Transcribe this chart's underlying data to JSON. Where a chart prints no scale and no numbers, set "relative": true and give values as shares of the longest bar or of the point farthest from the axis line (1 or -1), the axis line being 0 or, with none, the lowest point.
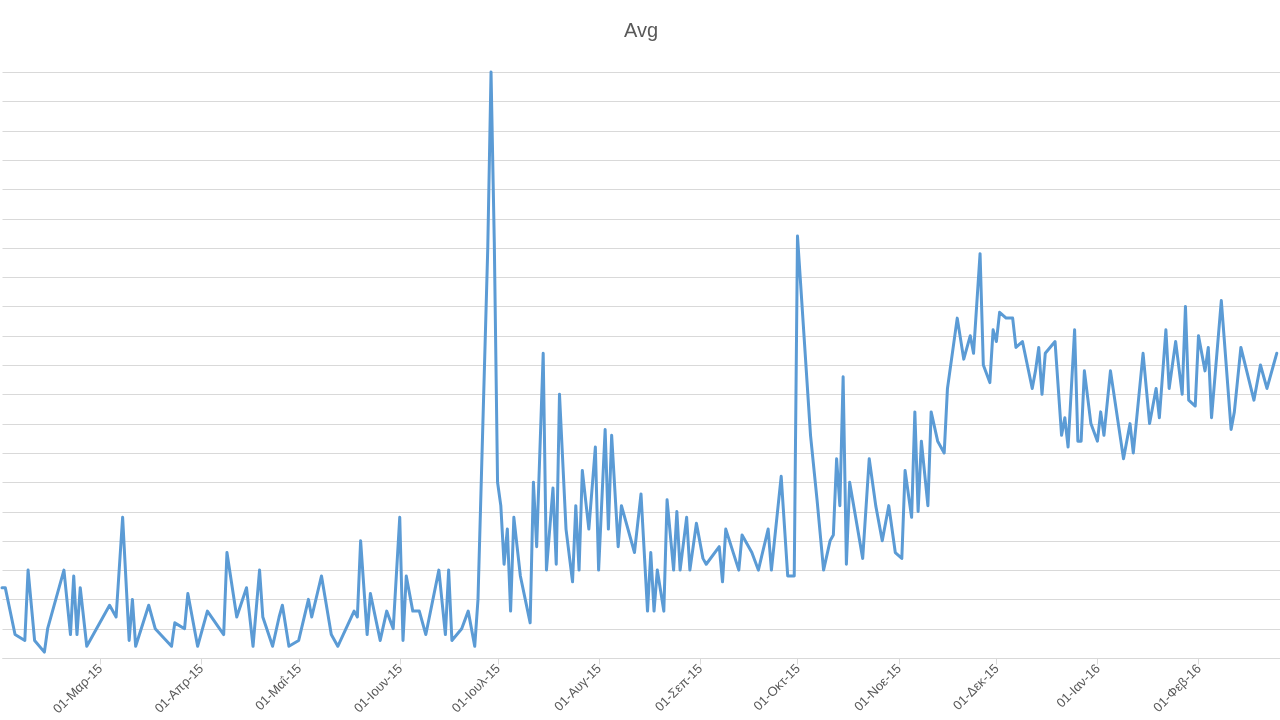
{
  "chart_data": {
    "type": "line",
    "title": "Avg",
    "relative": true,
    "grid": "y",
    "xlim": [
      "2015-01-30",
      "2016-02-26"
    ],
    "xticks": [
      {
        "value": "2015-03-01",
        "label": "01-Μαρ-15"
      },
      {
        "value": "2015-04-01",
        "label": "01-Απρ-15"
      },
      {
        "value": "2015-05-01",
        "label": "01-Μαΐ-15"
      },
      {
        "value": "2015-06-01",
        "label": "01-Ιουν-15"
      },
      {
        "value": "2015-07-01",
        "label": "01-Ιουλ-15"
      },
      {
        "value": "2015-08-01",
        "label": "01-Αυγ-15"
      },
      {
        "value": "2015-09-01",
        "label": "01-Σεπ-15"
      },
      {
        "value": "2015-10-01",
        "label": "01-Οκτ-15"
      },
      {
        "value": "2015-11-01",
        "label": "01-Νοε-15"
      },
      {
        "value": "2015-12-01",
        "label": "01-Δεκ-15"
      },
      {
        "value": "2016-01-01",
        "label": "01-Ιαν-16"
      },
      {
        "value": "2016-02-01",
        "label": "01-Φεβ-16"
      }
    ],
    "series": [
      {
        "color": "#5b9bd5",
        "x": [
          "2015-01-30",
          "2015-01-31",
          "2015-02-03",
          "2015-02-06",
          "2015-02-07",
          "2015-02-09",
          "2015-02-12",
          "2015-02-13",
          "2015-02-18",
          "2015-02-20",
          "2015-02-21",
          "2015-02-22",
          "2015-02-23",
          "2015-02-25",
          "2015-03-04",
          "2015-03-06",
          "2015-03-08",
          "2015-03-10",
          "2015-03-11",
          "2015-03-12",
          "2015-03-16",
          "2015-03-18",
          "2015-03-23",
          "2015-03-24",
          "2015-03-27",
          "2015-03-28",
          "2015-03-31",
          "2015-04-03",
          "2015-04-08",
          "2015-04-09",
          "2015-04-12",
          "2015-04-15",
          "2015-04-17",
          "2015-04-19",
          "2015-04-20",
          "2015-04-23",
          "2015-04-25",
          "2015-04-26",
          "2015-04-28",
          "2015-05-01",
          "2015-05-04",
          "2015-05-05",
          "2015-05-08",
          "2015-05-11",
          "2015-05-13",
          "2015-05-18",
          "2015-05-19",
          "2015-05-20",
          "2015-05-22",
          "2015-05-23",
          "2015-05-26",
          "2015-05-28",
          "2015-05-30",
          "2015-06-01",
          "2015-06-02",
          "2015-06-03",
          "2015-06-05",
          "2015-06-07",
          "2015-06-09",
          "2015-06-13",
          "2015-06-15",
          "2015-06-16",
          "2015-06-17",
          "2015-06-20",
          "2015-06-22",
          "2015-06-24",
          "2015-06-25",
          "2015-06-28",
          "2015-06-29",
          "2015-06-30",
          "2015-07-01",
          "2015-07-02",
          "2015-07-03",
          "2015-07-04",
          "2015-07-05",
          "2015-07-06",
          "2015-07-08",
          "2015-07-11",
          "2015-07-12",
          "2015-07-13",
          "2015-07-15",
          "2015-07-16",
          "2015-07-18",
          "2015-07-19",
          "2015-07-20",
          "2015-07-22",
          "2015-07-24",
          "2015-07-25",
          "2015-07-26",
          "2015-07-27",
          "2015-07-29",
          "2015-07-31",
          "2015-08-01",
          "2015-08-03",
          "2015-08-04",
          "2015-08-05",
          "2015-08-07",
          "2015-08-08",
          "2015-08-12",
          "2015-08-14",
          "2015-08-16",
          "2015-08-17",
          "2015-08-18",
          "2015-08-19",
          "2015-08-21",
          "2015-08-22",
          "2015-08-24",
          "2015-08-25",
          "2015-08-26",
          "2015-08-28",
          "2015-08-29",
          "2015-08-31",
          "2015-09-02",
          "2015-09-03",
          "2015-09-07",
          "2015-09-08",
          "2015-09-09",
          "2015-09-13",
          "2015-09-14",
          "2015-09-17",
          "2015-09-19",
          "2015-09-22",
          "2015-09-23",
          "2015-09-26",
          "2015-09-28",
          "2015-09-30",
          "2015-10-01",
          "2015-10-05",
          "2015-10-07",
          "2015-10-09",
          "2015-10-11",
          "2015-10-12",
          "2015-10-13",
          "2015-10-14",
          "2015-10-15",
          "2015-10-16",
          "2015-10-17",
          "2015-10-21",
          "2015-10-23",
          "2015-10-25",
          "2015-10-27",
          "2015-10-29",
          "2015-10-31",
          "2015-11-02",
          "2015-11-03",
          "2015-11-05",
          "2015-11-06",
          "2015-11-07",
          "2015-11-08",
          "2015-11-10",
          "2015-11-11",
          "2015-11-13",
          "2015-11-15",
          "2015-11-16",
          "2015-11-19",
          "2015-11-21",
          "2015-11-23",
          "2015-11-24",
          "2015-11-26",
          "2015-11-27",
          "2015-11-29",
          "2015-11-30",
          "2015-12-01",
          "2015-12-02",
          "2015-12-04",
          "2015-12-06",
          "2015-12-07",
          "2015-12-09",
          "2015-12-12",
          "2015-12-13",
          "2015-12-14",
          "2015-12-15",
          "2015-12-16",
          "2015-12-19",
          "2015-12-21",
          "2015-12-22",
          "2015-12-23",
          "2015-12-25",
          "2015-12-26",
          "2015-12-27",
          "2015-12-28",
          "2015-12-30",
          "2016-01-01",
          "2016-01-02",
          "2016-01-03",
          "2016-01-05",
          "2016-01-09",
          "2016-01-11",
          "2016-01-12",
          "2016-01-15",
          "2016-01-17",
          "2016-01-19",
          "2016-01-20",
          "2016-01-22",
          "2016-01-23",
          "2016-01-25",
          "2016-01-27",
          "2016-01-28",
          "2016-01-29",
          "2016-01-31",
          "2016-02-01",
          "2016-02-03",
          "2016-02-04",
          "2016-02-05",
          "2016-02-08",
          "2016-02-11",
          "2016-02-12",
          "2016-02-14",
          "2016-02-18",
          "2016-02-20",
          "2016-02-22",
          "2016-02-24",
          "2016-02-25"
        ],
        "values": [
          0.12,
          0.12,
          0.04,
          0.03,
          0.15,
          0.03,
          0.01,
          0.05,
          0.15,
          0.04,
          0.14,
          0.04,
          0.12,
          0.02,
          0.09,
          0.07,
          0.24,
          0.03,
          0.1,
          0.02,
          0.09,
          0.05,
          0.02,
          0.06,
          0.05,
          0.11,
          0.02,
          0.08,
          0.04,
          0.18,
          0.07,
          0.12,
          0.02,
          0.15,
          0.07,
          0.02,
          0.07,
          0.09,
          0.02,
          0.03,
          0.1,
          0.07,
          0.14,
          0.04,
          0.02,
          0.08,
          0.07,
          0.2,
          0.04,
          0.11,
          0.03,
          0.08,
          0.05,
          0.24,
          0.03,
          0.14,
          0.08,
          0.08,
          0.04,
          0.15,
          0.04,
          0.15,
          0.03,
          0.05,
          0.08,
          0.02,
          0.1,
          0.7,
          1.0,
          0.71,
          0.3,
          0.26,
          0.16,
          0.22,
          0.08,
          0.24,
          0.14,
          0.06,
          0.3,
          0.19,
          0.52,
          0.15,
          0.29,
          0.16,
          0.45,
          0.22,
          0.13,
          0.26,
          0.15,
          0.32,
          0.22,
          0.36,
          0.15,
          0.39,
          0.22,
          0.38,
          0.19,
          0.26,
          0.18,
          0.28,
          0.08,
          0.18,
          0.08,
          0.15,
          0.08,
          0.27,
          0.15,
          0.25,
          0.15,
          0.24,
          0.15,
          0.23,
          0.17,
          0.16,
          0.19,
          0.13,
          0.22,
          0.15,
          0.21,
          0.18,
          0.15,
          0.22,
          0.15,
          0.31,
          0.14,
          0.14,
          0.72,
          0.38,
          0.27,
          0.15,
          0.2,
          0.21,
          0.34,
          0.26,
          0.48,
          0.16,
          0.3,
          0.17,
          0.34,
          0.26,
          0.2,
          0.26,
          0.18,
          0.17,
          0.32,
          0.24,
          0.42,
          0.25,
          0.37,
          0.26,
          0.42,
          0.37,
          0.35,
          0.46,
          0.58,
          0.51,
          0.55,
          0.52,
          0.69,
          0.5,
          0.47,
          0.56,
          0.54,
          0.59,
          0.58,
          0.58,
          0.53,
          0.54,
          0.46,
          0.49,
          0.53,
          0.45,
          0.52,
          0.54,
          0.38,
          0.41,
          0.36,
          0.56,
          0.37,
          0.37,
          0.49,
          0.4,
          0.37,
          0.42,
          0.38,
          0.49,
          0.34,
          0.4,
          0.35,
          0.52,
          0.4,
          0.46,
          0.41,
          0.56,
          0.46,
          0.54,
          0.45,
          0.6,
          0.44,
          0.43,
          0.55,
          0.49,
          0.53,
          0.41,
          0.61,
          0.39,
          0.42,
          0.53,
          0.44,
          0.5,
          0.46,
          0.5,
          0.52
        ]
      }
    ]
  }
}
